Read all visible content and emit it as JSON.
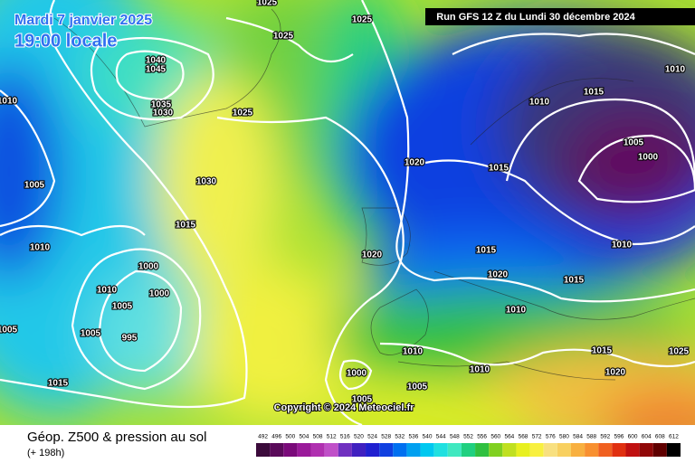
{
  "header": {
    "date": "Mardi 7 janvier 2025",
    "time": "19:00 locale",
    "run": "Run GFS 12 Z du Lundi 30 décembre 2024"
  },
  "copyright": "Copyright © 2024 Meteociel.fr",
  "footer": {
    "title": "Géop. Z500 & pression au sol",
    "lead": "(+ 198h)"
  },
  "legend": {
    "values": [
      492,
      496,
      500,
      504,
      508,
      512,
      516,
      520,
      524,
      528,
      532,
      536,
      540,
      544,
      548,
      552,
      556,
      560,
      564,
      568,
      572,
      576,
      580,
      584,
      588,
      592,
      596,
      600,
      604,
      608,
      612
    ],
    "colors": [
      "#3b0b3b",
      "#5a0a5a",
      "#7a0a7a",
      "#9a1a9a",
      "#b030b0",
      "#c050c8",
      "#7030c0",
      "#4020c0",
      "#2020d0",
      "#1040e0",
      "#0070f0",
      "#00a0f0",
      "#00c8f0",
      "#20e0e0",
      "#40e8c0",
      "#20d080",
      "#30c040",
      "#80d020",
      "#c0e020",
      "#e8f020",
      "#f8f040",
      "#f8e080",
      "#f8d060",
      "#f8b040",
      "#f89030",
      "#f06020",
      "#e03010",
      "#c01010",
      "#900808",
      "#600000",
      "#000000"
    ]
  },
  "isobar_labels": [
    1025,
    1025,
    1025,
    1040,
    1045,
    1035,
    1030,
    1025,
    1030,
    1010,
    1005,
    1015,
    1010,
    1000,
    1010,
    1000,
    1005,
    1005,
    995,
    1005,
    1015,
    1000,
    1005,
    1005,
    1010,
    1010,
    1020,
    1015,
    1010,
    1015,
    1010,
    1005,
    1000,
    1020,
    1015,
    1020,
    1015,
    1010,
    1010,
    1015,
    1020,
    1025
  ]
}
